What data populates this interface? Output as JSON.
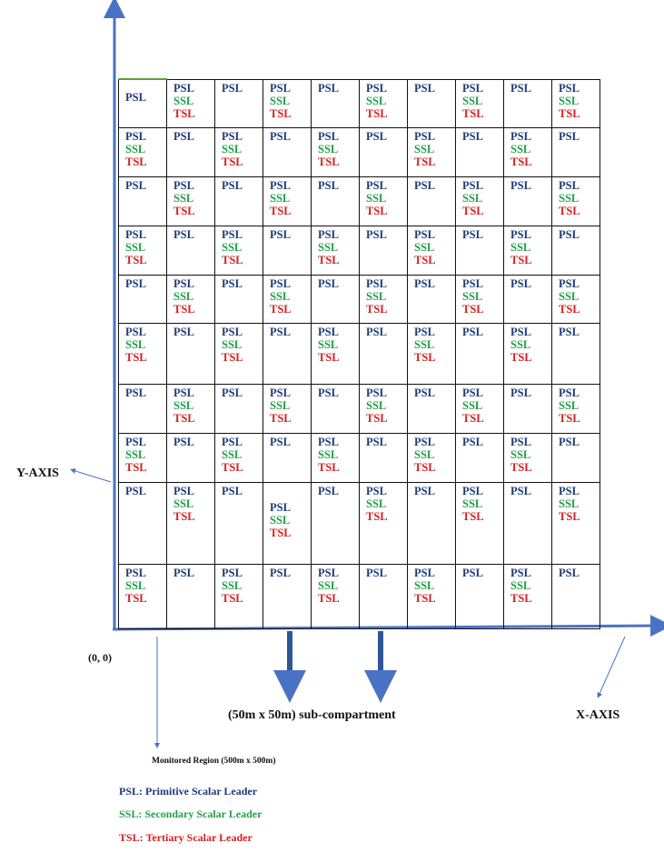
{
  "labels": {
    "y_axis": "Y-AXIS",
    "x_axis": "X-AXIS",
    "origin": "(0, 0)",
    "sub_compartment": "(50m x 50m) sub-compartment",
    "monitored_region": "Monitored Region (500m x 500m)"
  },
  "leader_text": {
    "psl": "PSL",
    "ssl": "SSL",
    "tsl": "TSL"
  },
  "legend": [
    {
      "key": "psl",
      "text": "PSL: Primitive Scalar Leader"
    },
    {
      "key": "ssl",
      "text": "SSL: Secondary Scalar Leader"
    },
    {
      "key": "tsl",
      "text": "TSL: Tertiary Scalar Leader"
    }
  ],
  "grid": [
    [
      "P",
      "A",
      "P",
      "A",
      "P",
      "A",
      "P",
      "A",
      "P",
      "A"
    ],
    [
      "A",
      "P",
      "A",
      "P",
      "A",
      "P",
      "A",
      "P",
      "A",
      "P"
    ],
    [
      "P",
      "A",
      "P",
      "A",
      "P",
      "A",
      "P",
      "A",
      "P",
      "A"
    ],
    [
      "A",
      "P",
      "A",
      "P",
      "A",
      "P",
      "A",
      "P",
      "A",
      "P"
    ],
    [
      "P",
      "A",
      "P",
      "A",
      "P",
      "A",
      "P",
      "A",
      "P",
      "A"
    ],
    [
      "A",
      "P",
      "A",
      "P",
      "A",
      "P",
      "A",
      "P",
      "A",
      "P"
    ],
    [
      "P",
      "A",
      "P",
      "A",
      "P",
      "A",
      "P",
      "A",
      "P",
      "A"
    ],
    [
      "A",
      "P",
      "A",
      "P",
      "A",
      "P",
      "A",
      "P",
      "A",
      "P"
    ],
    [
      "P",
      "A",
      "P",
      "A",
      "P",
      "A",
      "P",
      "A",
      "P",
      "A"
    ],
    [
      "A",
      "P",
      "A",
      "P",
      "A",
      "P",
      "A",
      "P",
      "A",
      "P"
    ]
  ],
  "colors": {
    "psl": "#1f3a7a",
    "ssl": "#22a04a",
    "tsl": "#d42020",
    "axis": "#4a72c4"
  }
}
